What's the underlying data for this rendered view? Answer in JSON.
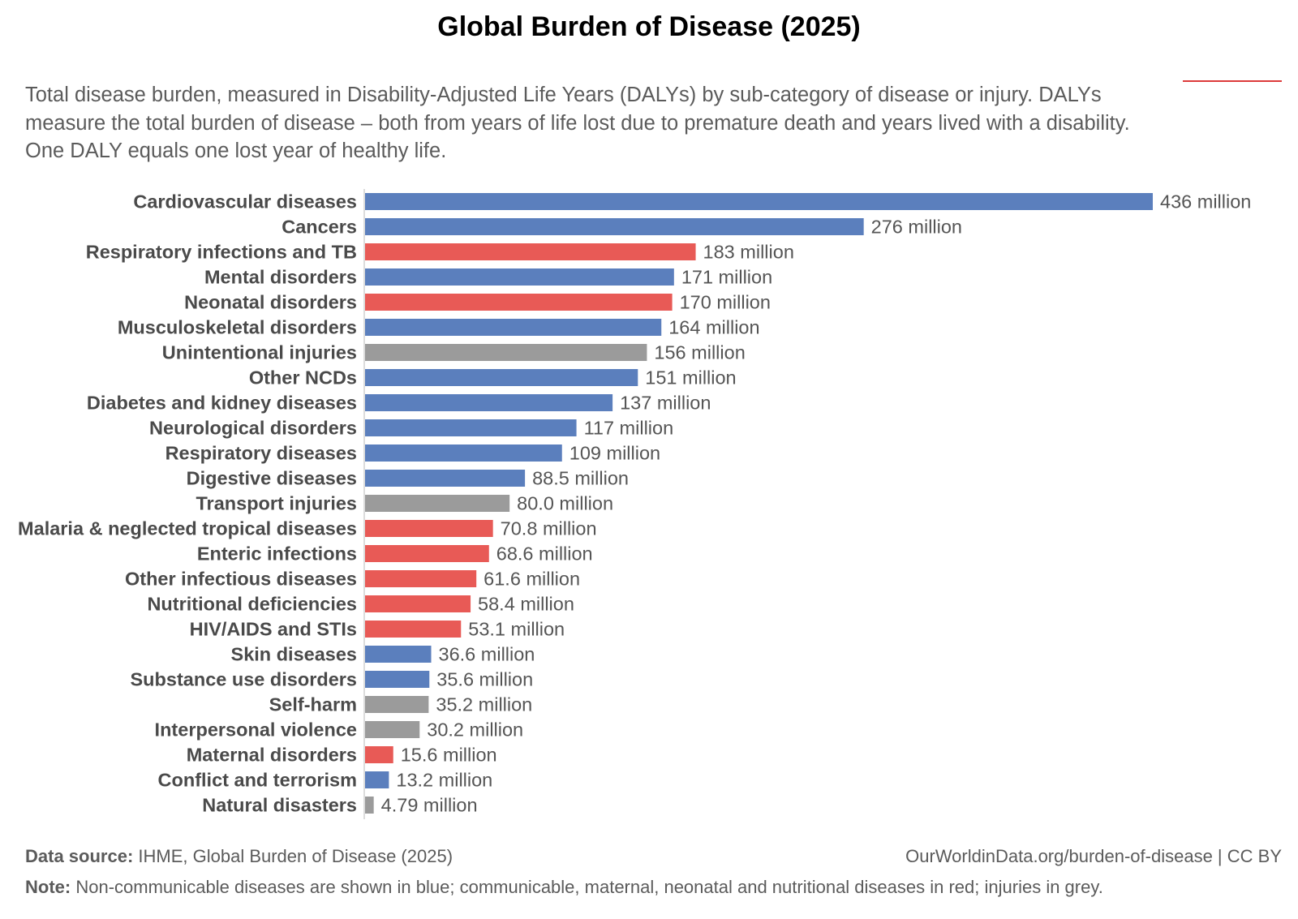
{
  "chart_data": {
    "type": "bar",
    "orientation": "horizontal",
    "title": "Global Burden of Disease (2025)",
    "subtitle": "Total disease burden, measured in Disability-Adjusted Life Years (DALYs) by sub-category of disease or injury. DALYs measure the total burden of disease – both from years of life lost due to premature death and years lived with a disability. One DALY equals one lost year of healthy life.",
    "xlim": [
      0,
      436
    ],
    "grid": false,
    "legend": "none",
    "colors": {
      "non_communicable": "#5b7fbd",
      "communicable": "#e85a56",
      "injuries": "#9b9b9b"
    },
    "bars": [
      {
        "category": "Cardiovascular diseases",
        "value": 436,
        "label": "436 million",
        "group": "non_communicable"
      },
      {
        "category": "Cancers",
        "value": 276,
        "label": "276 million",
        "group": "non_communicable"
      },
      {
        "category": "Respiratory infections and TB",
        "value": 183,
        "label": "183 million",
        "group": "communicable"
      },
      {
        "category": "Mental disorders",
        "value": 171,
        "label": "171 million",
        "group": "non_communicable"
      },
      {
        "category": "Neonatal disorders",
        "value": 170,
        "label": "170 million",
        "group": "communicable"
      },
      {
        "category": "Musculoskeletal disorders",
        "value": 164,
        "label": "164 million",
        "group": "non_communicable"
      },
      {
        "category": "Unintentional injuries",
        "value": 156,
        "label": "156 million",
        "group": "injuries"
      },
      {
        "category": "Other NCDs",
        "value": 151,
        "label": "151 million",
        "group": "non_communicable"
      },
      {
        "category": "Diabetes and kidney diseases",
        "value": 137,
        "label": "137 million",
        "group": "non_communicable"
      },
      {
        "category": "Neurological disorders",
        "value": 117,
        "label": "117 million",
        "group": "non_communicable"
      },
      {
        "category": "Respiratory diseases",
        "value": 109,
        "label": "109 million",
        "group": "non_communicable"
      },
      {
        "category": "Digestive diseases",
        "value": 88.5,
        "label": "88.5 million",
        "group": "non_communicable"
      },
      {
        "category": "Transport injuries",
        "value": 80.0,
        "label": "80.0 million",
        "group": "injuries"
      },
      {
        "category": "Malaria & neglected tropical diseases",
        "value": 70.8,
        "label": "70.8 million",
        "group": "communicable"
      },
      {
        "category": "Enteric infections",
        "value": 68.6,
        "label": "68.6 million",
        "group": "communicable"
      },
      {
        "category": "Other infectious diseases",
        "value": 61.6,
        "label": "61.6 million",
        "group": "communicable"
      },
      {
        "category": "Nutritional deficiencies",
        "value": 58.4,
        "label": "58.4 million",
        "group": "communicable"
      },
      {
        "category": "HIV/AIDS and STIs",
        "value": 53.1,
        "label": "53.1 million",
        "group": "communicable"
      },
      {
        "category": "Skin diseases",
        "value": 36.6,
        "label": "36.6 million",
        "group": "non_communicable"
      },
      {
        "category": "Substance use disorders",
        "value": 35.6,
        "label": "35.6 million",
        "group": "non_communicable"
      },
      {
        "category": "Self-harm",
        "value": 35.2,
        "label": "35.2 million",
        "group": "injuries"
      },
      {
        "category": "Interpersonal violence",
        "value": 30.2,
        "label": "30.2 million",
        "group": "injuries"
      },
      {
        "category": "Maternal disorders",
        "value": 15.6,
        "label": "15.6 million",
        "group": "communicable"
      },
      {
        "category": "Conflict and terrorism",
        "value": 13.2,
        "label": "13.2 million",
        "group": "non_communicable"
      },
      {
        "category": "Natural disasters",
        "value": 4.79,
        "label": "4.79 million",
        "group": "injuries"
      }
    ]
  },
  "accent_color": "#dd3a3a",
  "footer": {
    "source_key": "Data source:",
    "source_text": " IHME, Global Burden of Disease (2025)",
    "url": "OurWorldinData.org/burden-of-disease | CC BY",
    "note_key": "Note:",
    "note_text": " Non-communicable diseases are shown in blue; communicable, maternal, neonatal and nutritional diseases in red; injuries in grey."
  }
}
